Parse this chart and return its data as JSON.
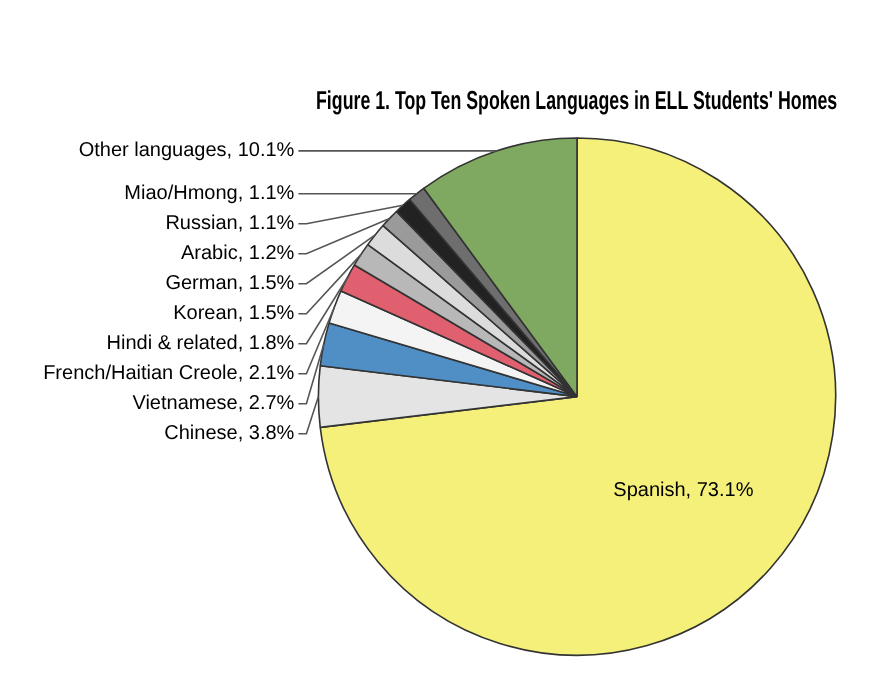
{
  "chart_data": {
    "type": "pie",
    "title": "Figure 1. Top Ten Spoken Languages in ELL Students' Homes",
    "categories": [
      "Spanish",
      "Chinese",
      "Vietnamese",
      "French/Haitian Creole",
      "Hindi & related",
      "Korean",
      "German",
      "Arabic",
      "Russian",
      "Miao/Hmong",
      "Other languages"
    ],
    "values": [
      73.1,
      3.8,
      2.7,
      2.1,
      1.8,
      1.5,
      1.5,
      1.2,
      1.1,
      1.1,
      10.1
    ],
    "value_labels": [
      "73.1%",
      "3.8%",
      "2.7%",
      "2.1%",
      "1.8%",
      "1.5%",
      "1.5%",
      "1.2%",
      "1.1%",
      "1.1%",
      "10.1%"
    ],
    "colors": [
      "#f5f07a",
      "#e4e4e4",
      "#4f8fc6",
      "#f4f4f4",
      "#e06070",
      "#b8b8b8",
      "#dcdcdc",
      "#9a9a9a",
      "#222222",
      "#6e6e6e",
      "#7fa860"
    ],
    "legend": false
  }
}
